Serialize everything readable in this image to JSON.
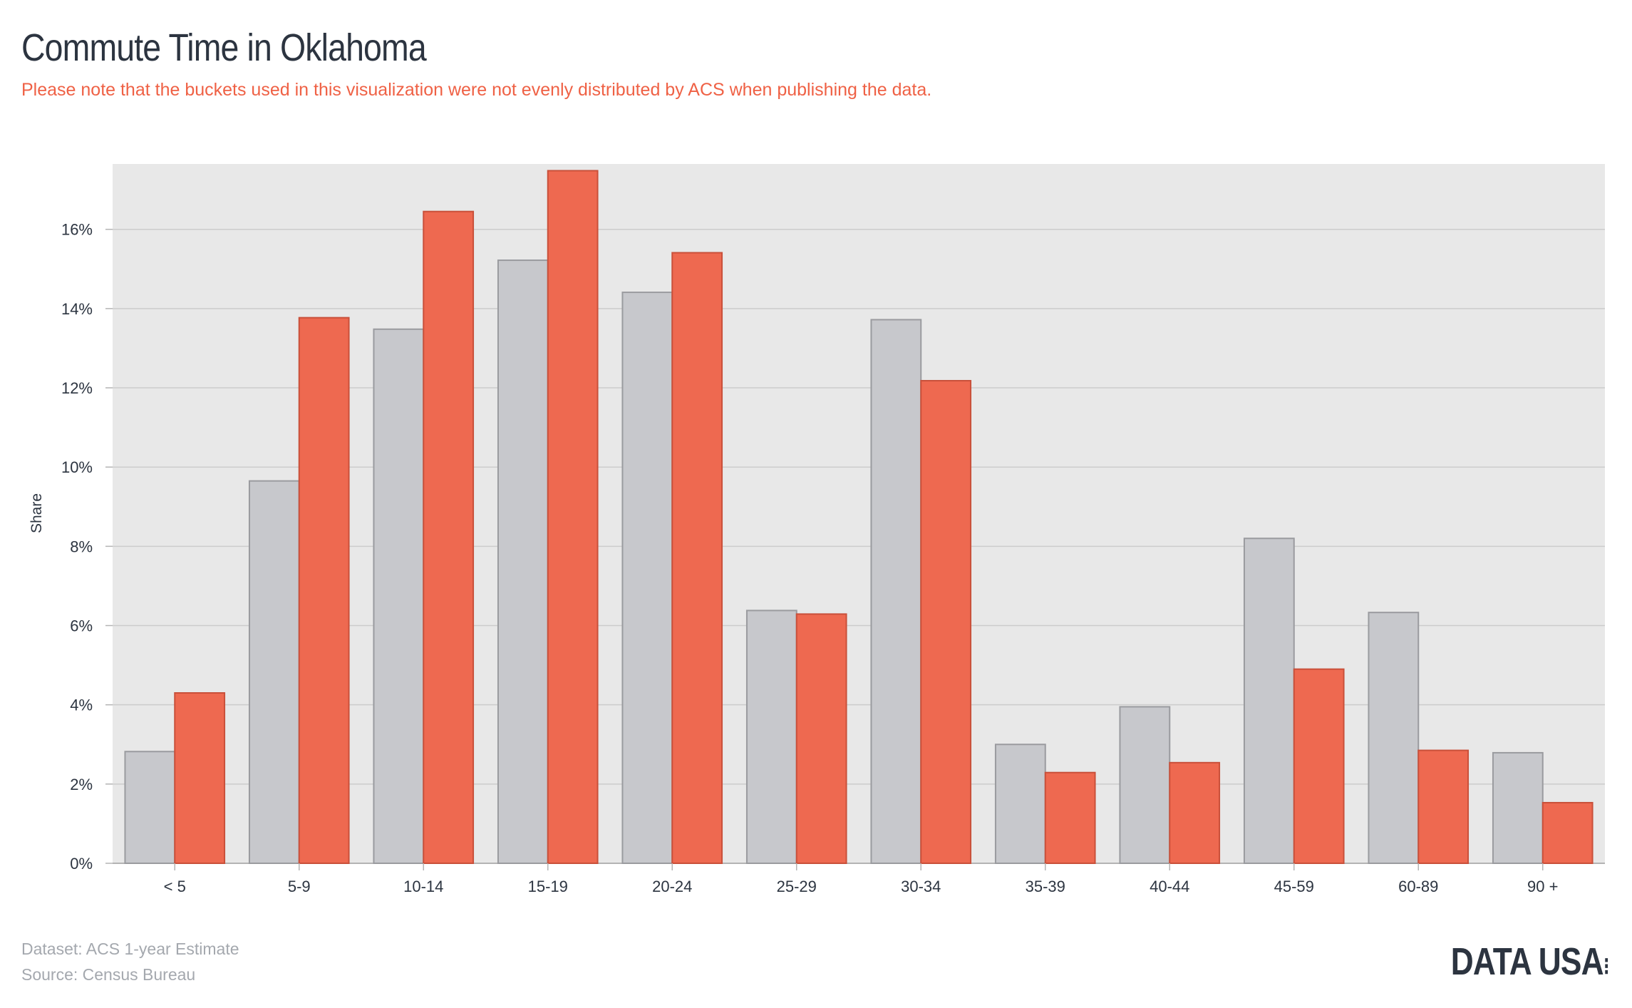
{
  "title": "Commute Time in Oklahoma",
  "subtitle": "Please note that the buckets used in this visualization were not evenly distributed by ACS when publishing the data.",
  "footer": {
    "dataset": "Dataset: ACS 1-year Estimate",
    "source": "Source: Census Bureau"
  },
  "logo": {
    "text": "DATA USA",
    "mark": "⁝"
  },
  "colors": {
    "plot_background": "#e8e8e8",
    "gridline": "#cccccc",
    "series_gray": "#c7c8cc",
    "series_gray_stroke": "#9a9b9f",
    "series_red": "#ee6950",
    "series_red_stroke": "#c9503a",
    "text": "#2c3440",
    "subtitle": "#ef6145",
    "footer": "#a4a8ae"
  },
  "chart_data": {
    "type": "bar",
    "categories": [
      "< 5",
      "5-9",
      "10-14",
      "15-19",
      "20-24",
      "25-29",
      "30-34",
      "35-39",
      "40-44",
      "45-59",
      "60-89",
      "90 +"
    ],
    "series": [
      {
        "values": [
          2.82,
          9.65,
          13.48,
          15.22,
          14.41,
          6.38,
          13.72,
          3.0,
          3.95,
          8.2,
          6.33,
          2.79
        ]
      },
      {
        "values": [
          4.3,
          13.77,
          16.45,
          17.48,
          15.41,
          6.29,
          12.18,
          2.29,
          2.54,
          4.9,
          2.85,
          1.53
        ]
      }
    ],
    "ylabel": "Share",
    "xlabel": "",
    "ylim": [
      0,
      17.65
    ],
    "yticks": [
      0,
      2,
      4,
      6,
      8,
      10,
      12,
      14,
      16
    ],
    "ytick_labels": [
      "0%",
      "2%",
      "4%",
      "6%",
      "8%",
      "10%",
      "12%",
      "14%",
      "16%"
    ],
    "grid": true,
    "legend": "none"
  }
}
